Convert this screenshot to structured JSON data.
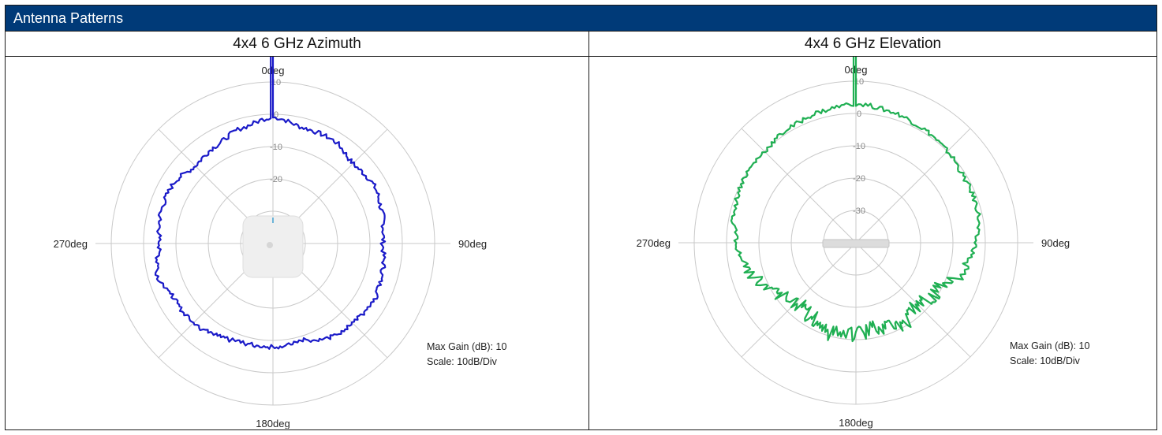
{
  "header": {
    "title": "Antenna Patterns"
  },
  "chart_data": [
    {
      "type": "polar-line",
      "title": "4x4 6 GHz Azimuth",
      "angle_labels": [
        "0deg",
        "90deg",
        "180deg",
        "270deg"
      ],
      "radial_ticks": [
        "10",
        "0",
        "-10",
        "-20"
      ],
      "radial_range_db": [
        -40,
        10
      ],
      "notes": [
        "Max Gain (dB): 10",
        "Scale: 10dB/Div"
      ],
      "series_color": "#1a1ac8",
      "series": [
        {
          "angle_deg": [
            0,
            15,
            30,
            45,
            60,
            75,
            90,
            105,
            120,
            135,
            150,
            165,
            180,
            195,
            210,
            225,
            240,
            255,
            270,
            285,
            300,
            315,
            330,
            345
          ],
          "gain_db": [
            -1,
            -3,
            -3,
            -5,
            -4,
            -5,
            -6,
            -5,
            -4,
            -5,
            -6,
            -9,
            -8,
            -8,
            -7,
            -5,
            -5,
            -3,
            -5,
            -4,
            -4,
            -6,
            -5,
            -3
          ]
        }
      ]
    },
    {
      "type": "polar-line",
      "title": "4x4 6 GHz Elevation",
      "angle_labels": [
        "0deg",
        "90deg",
        "180deg",
        "270deg"
      ],
      "radial_ticks": [
        "10",
        "0",
        "-10",
        "-20",
        "-30"
      ],
      "radial_range_db": [
        -40,
        10
      ],
      "notes": [
        "Max Gain (dB): 10",
        "Scale: 10dB/Div"
      ],
      "series_color": "#1faf52",
      "series": [
        {
          "angle_deg": [
            0,
            15,
            30,
            45,
            60,
            75,
            90,
            105,
            120,
            135,
            150,
            165,
            180,
            195,
            210,
            225,
            240,
            255,
            270,
            285,
            300,
            315,
            330,
            345
          ],
          "gain_db": [
            3,
            2,
            1,
            0,
            -1,
            -1,
            -3,
            -6,
            -11,
            -13,
            -10,
            -13,
            -12,
            -11,
            -13,
            -14,
            -11,
            -6,
            -3,
            -1,
            0,
            0,
            1,
            2
          ]
        }
      ]
    }
  ]
}
